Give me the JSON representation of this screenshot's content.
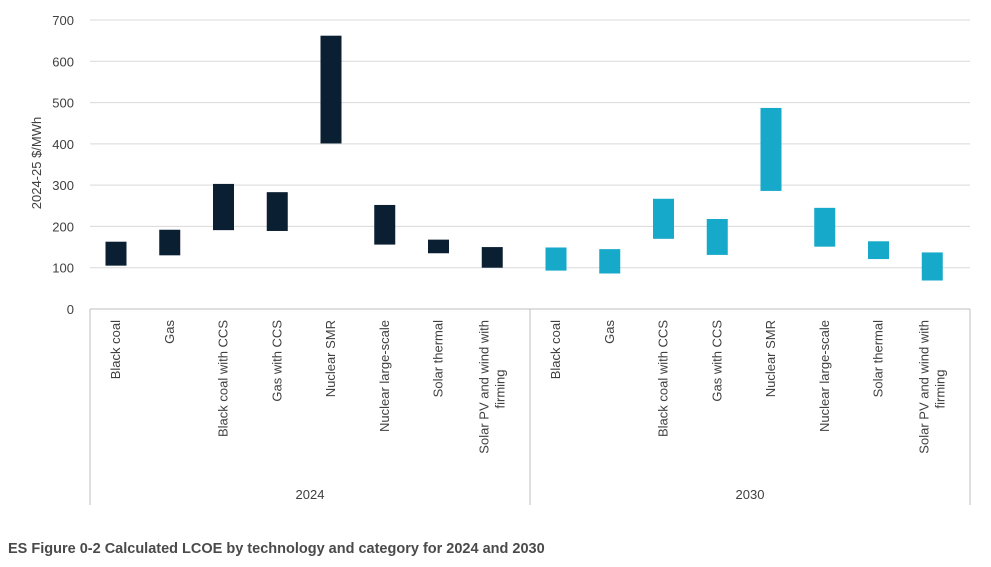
{
  "caption": "ES Figure 0-2 Calculated LCOE by technology and category for 2024 and 2030",
  "colors": {
    "series_2024": "#0b1f33",
    "series_2030": "#17a9c9",
    "grid": "#d9d9d9",
    "axis": "#bfbfbf",
    "text": "#404040"
  },
  "chart_data": {
    "type": "bar",
    "subtype": "floating-range",
    "ylabel": "2024-25 $/MWh",
    "ylim": [
      0,
      700
    ],
    "yticks": [
      0,
      100,
      200,
      300,
      400,
      500,
      600,
      700
    ],
    "grid": true,
    "groups": [
      {
        "label": "2024",
        "color": "#0b1f33",
        "categories": [
          [
            "Black coal"
          ],
          [
            "Gas"
          ],
          [
            "Black coal with CCS"
          ],
          [
            "Gas with CCS"
          ],
          [
            "Nuclear SMR"
          ],
          [
            "Nuclear large-scale"
          ],
          [
            "Solar thermal"
          ],
          [
            "Solar PV and wind with",
            "firming"
          ]
        ],
        "ranges": [
          [
            105,
            163
          ],
          [
            130,
            192
          ],
          [
            191,
            303
          ],
          [
            189,
            283
          ],
          [
            401,
            662
          ],
          [
            156,
            252
          ],
          [
            135,
            168
          ],
          [
            100,
            150
          ]
        ]
      },
      {
        "label": "2030",
        "color": "#17a9c9",
        "categories": [
          [
            "Black coal"
          ],
          [
            "Gas"
          ],
          [
            "Black coal with CCS"
          ],
          [
            "Gas with CCS"
          ],
          [
            "Nuclear SMR"
          ],
          [
            "Nuclear large-scale"
          ],
          [
            "Solar thermal"
          ],
          [
            "Solar PV and wind with",
            "firming"
          ]
        ],
        "ranges": [
          [
            93,
            149
          ],
          [
            86,
            145
          ],
          [
            170,
            267
          ],
          [
            131,
            218
          ],
          [
            286,
            487
          ],
          [
            151,
            245
          ],
          [
            121,
            164
          ],
          [
            69,
            137
          ]
        ]
      }
    ]
  }
}
